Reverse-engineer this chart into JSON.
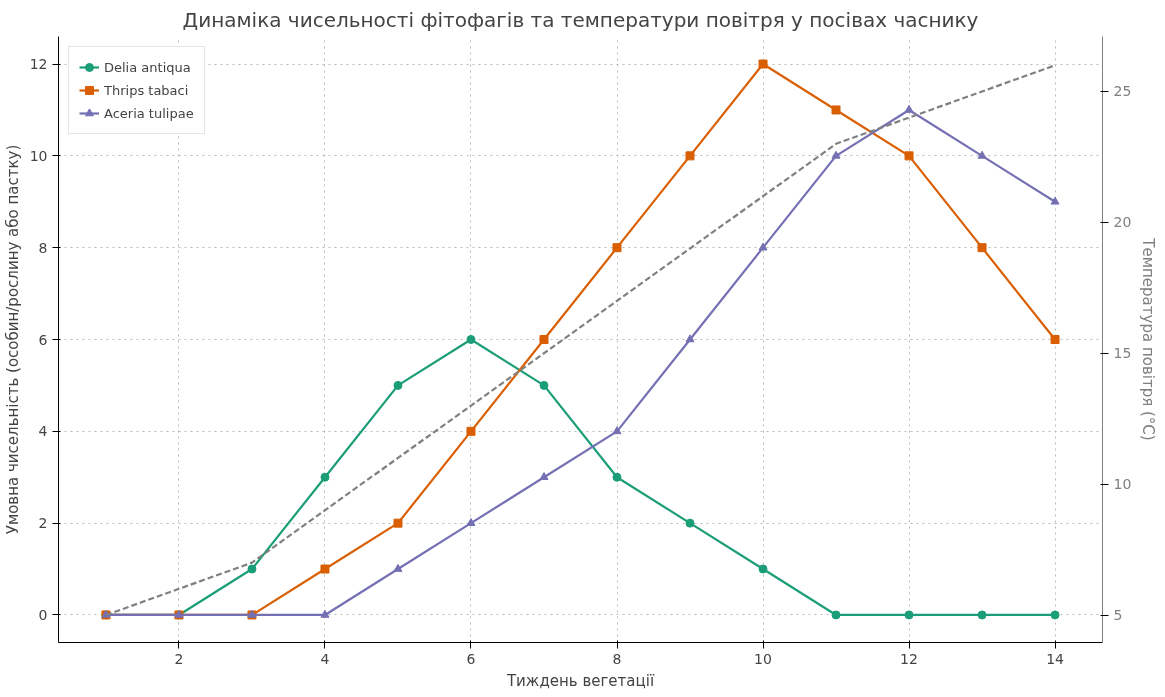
{
  "chart_data": {
    "type": "line",
    "title": "Динаміка чисельності фітофагів та температури повітря у посівах часнику",
    "xlabel": "Тиждень вегетації",
    "ylabel": "Умовна чисельність (особин/рослину або пастку)",
    "y2label": "Температура повітря (°C)",
    "x": [
      1,
      2,
      3,
      4,
      5,
      6,
      7,
      8,
      9,
      10,
      11,
      12,
      13,
      14
    ],
    "series": [
      {
        "name": "Delia antiqua",
        "color": "#1b9e77",
        "marker": "circle",
        "values": [
          0,
          0,
          1,
          3,
          5,
          6,
          5,
          3,
          2,
          1,
          0,
          0,
          0,
          0
        ]
      },
      {
        "name": "Thrips tabaci",
        "color": "#d95f02",
        "marker": "square",
        "values": [
          0,
          0,
          0,
          1,
          2,
          4,
          6,
          8,
          10,
          12,
          11,
          10,
          8,
          6
        ]
      },
      {
        "name": "Aceria tulipae",
        "color": "#7570b3",
        "marker": "triangle",
        "values": [
          0,
          0,
          0,
          0,
          1,
          2,
          3,
          4,
          6,
          8,
          10,
          11,
          10,
          9
        ]
      },
      {
        "color": "#808080",
        "marker": "none",
        "line_style": "dashed",
        "axis": "y2",
        "values": [
          5,
          6,
          7,
          9,
          11,
          13,
          15,
          17,
          19,
          21,
          23,
          24,
          25,
          26
        ]
      }
    ],
    "xlim": [
      0.35,
      14.65
    ],
    "xticks": [
      2,
      4,
      6,
      8,
      10,
      12,
      14
    ],
    "ylim": [
      -0.6,
      12.6
    ],
    "yticks": [
      0,
      2,
      4,
      6,
      8,
      10,
      12
    ],
    "y2lim": [
      3.95,
      27.1
    ],
    "y2ticks": [
      5,
      10,
      15,
      20,
      25
    ],
    "grid": true,
    "legend": "top left"
  }
}
